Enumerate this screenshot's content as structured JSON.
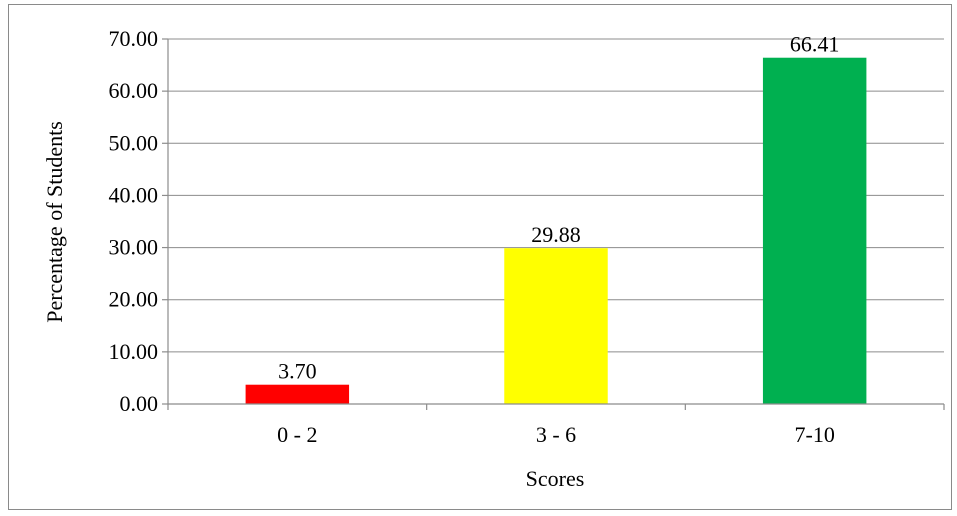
{
  "chart_data": {
    "type": "bar",
    "title": "",
    "xlabel": "Scores",
    "ylabel": "Percentage of Students",
    "categories": [
      "0 - 2",
      "3 - 6",
      "7-10"
    ],
    "values": [
      3.7,
      29.88,
      66.41
    ],
    "value_labels": [
      "3.70",
      "29.88",
      "66.41"
    ],
    "bar_colors": [
      "#ff0000",
      "#ffff00",
      "#00b050"
    ],
    "ylim": [
      0,
      70
    ],
    "yticks": [
      0,
      10,
      20,
      30,
      40,
      50,
      60,
      70
    ],
    "ytick_labels": [
      "0.00",
      "10.00",
      "20.00",
      "30.00",
      "40.00",
      "50.00",
      "60.00",
      "70.00"
    ],
    "grid": true,
    "legend": "none"
  }
}
